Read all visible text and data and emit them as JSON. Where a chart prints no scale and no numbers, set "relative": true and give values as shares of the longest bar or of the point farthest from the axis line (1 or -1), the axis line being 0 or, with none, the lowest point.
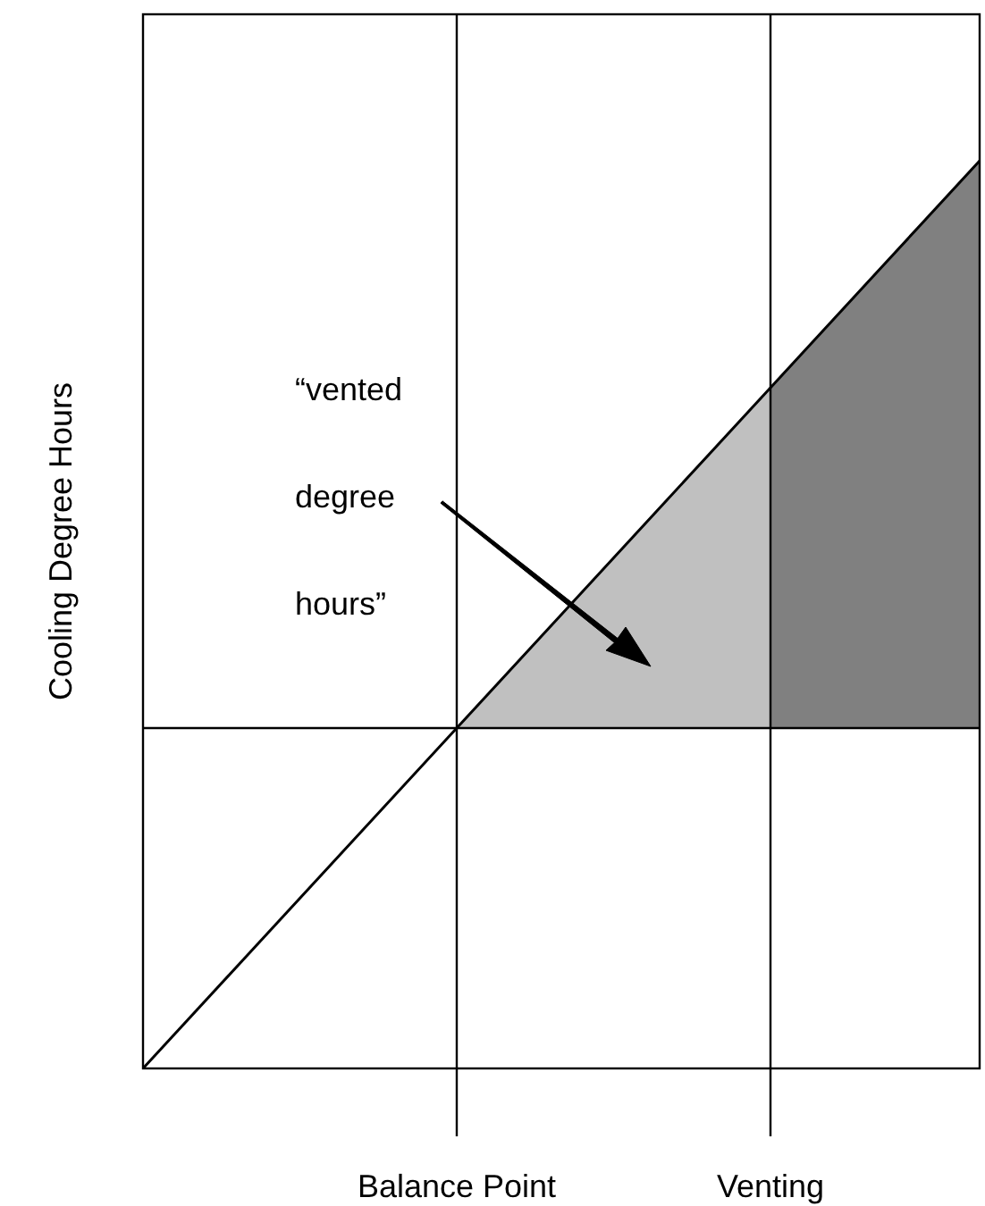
{
  "chart_data": {
    "type": "line",
    "relative": true,
    "ylabel": "Cooling Degree Hours",
    "categories": [
      null,
      null,
      null,
      "Balance Point",
      null,
      null,
      "Venting",
      null,
      null
    ],
    "tick_labels": "x",
    "grid": "x",
    "series": [
      {
        "type": "area",
        "color": "#c0c0c0",
        "values": [
          null,
          null,
          null,
          0.375,
          0.5,
          0.625,
          0.75,
          null,
          null
        ]
      },
      {
        "type": "area",
        "color": "#808080",
        "values": [
          null,
          null,
          null,
          null,
          null,
          null,
          0.75,
          0.875,
          1
        ]
      },
      {
        "color": "#000000",
        "values": [
          0,
          0.125,
          0.25,
          0.375,
          0.5,
          0.625,
          0.75,
          0.875,
          1
        ]
      }
    ],
    "ref_lines": [
      {
        "axis": "y",
        "value": 0.375,
        "color": "#000000"
      }
    ],
    "annotations": [
      "“vented degree hours”"
    ]
  }
}
